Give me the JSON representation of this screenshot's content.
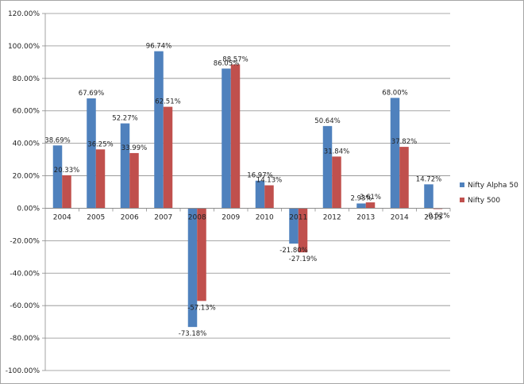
{
  "chart_data": {
    "type": "bar",
    "title": "",
    "xlabel": "",
    "ylabel": "",
    "ylim": [
      -100,
      120
    ],
    "ytick_step": 20,
    "ytick_format": "percent_2dp",
    "grid": true,
    "legend_position": "right",
    "categories": [
      "2004",
      "2005",
      "2006",
      "2007",
      "2008",
      "2009",
      "2010",
      "2011",
      "2012",
      "2013",
      "2014",
      "2015"
    ],
    "series": [
      {
        "name": "Nifty Alpha 50",
        "color": "#4f81bd",
        "values": [
          38.69,
          67.69,
          52.27,
          96.74,
          -73.18,
          86.05,
          16.97,
          -21.8,
          50.64,
          2.93,
          68.0,
          14.72
        ],
        "labels": [
          "38.69%",
          "67.69%",
          "52.27%",
          "96.74%",
          "-73.18%",
          "86.05%",
          "16.97%",
          "-21.80%",
          "50.64%",
          "2.93%",
          "68.00%",
          "14.72%"
        ]
      },
      {
        "name": "Nifty 500",
        "color": "#c0504d",
        "values": [
          20.33,
          36.25,
          33.99,
          62.51,
          -57.13,
          88.57,
          14.13,
          -27.19,
          31.84,
          3.61,
          37.82,
          -0.52
        ],
        "labels": [
          "20.33%",
          "36.25%",
          "33.99%",
          "62.51%",
          "-57.13%",
          "88.57%",
          "14.13%",
          "-27.19%",
          "31.84%",
          "3.61%",
          "37.82%",
          "-0.52%"
        ]
      }
    ]
  }
}
